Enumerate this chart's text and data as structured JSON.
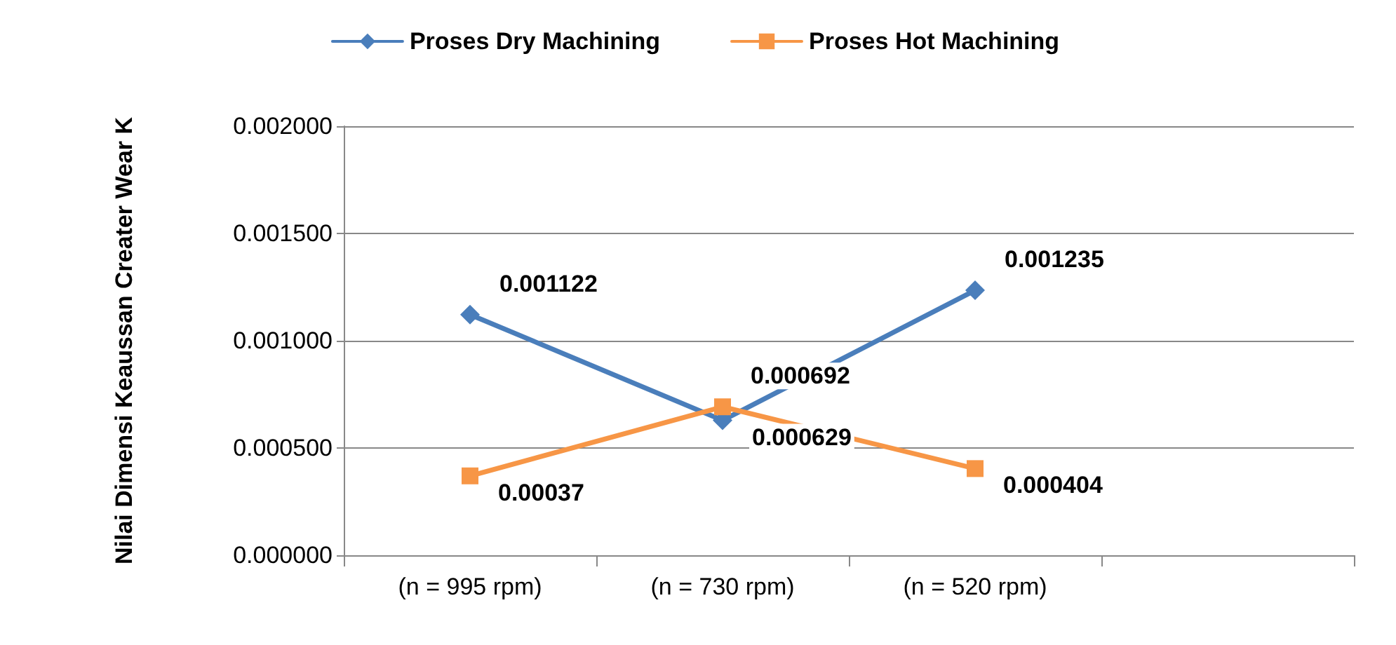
{
  "chart_data": {
    "type": "line",
    "ylabel": "Nilai Dimensi Keaussan Creater Wear K",
    "categories": [
      "(n = 995 rpm)",
      "(n = 730 rpm)",
      "(n = 520 rpm)",
      null
    ],
    "series": [
      {
        "name": "Proses Dry Machining",
        "color": "#4a7ebb",
        "marker": "diamond",
        "values": [
          0.001122,
          0.000629,
          0.001235,
          null
        ]
      },
      {
        "name": "Proses Hot Machining",
        "color": "#f79646",
        "marker": "square",
        "values": [
          0.00037,
          0.000692,
          0.000404,
          null
        ]
      }
    ],
    "ylim": [
      0,
      0.002
    ],
    "yticks": [
      {
        "value": 0,
        "label": "0.000000"
      },
      {
        "value": 0.0005,
        "label": "0.000500"
      },
      {
        "value": 0.001,
        "label": "0.001000"
      },
      {
        "value": 0.0015,
        "label": "0.001500"
      },
      {
        "value": 0.002,
        "label": "0.002000"
      }
    ],
    "grid": "y",
    "legend": "top",
    "data_labels": true,
    "line_style": "solid"
  }
}
